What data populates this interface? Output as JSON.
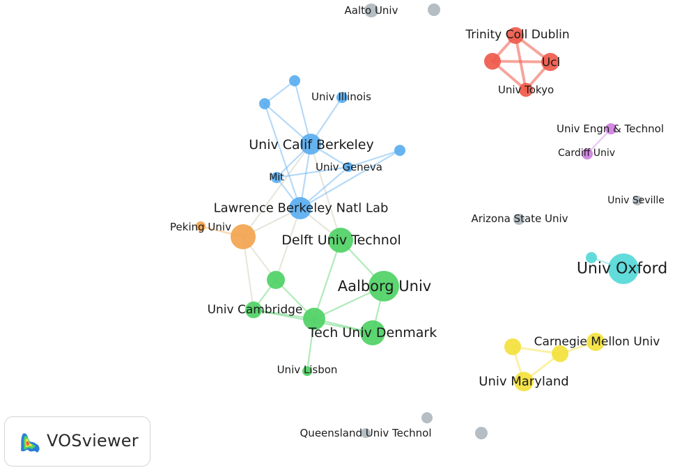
{
  "colors": {
    "blue": "#5aaef0",
    "green": "#4fd165",
    "orange": "#f3a44f",
    "red": "#ef5a4b",
    "purple": "#cf7ee0",
    "cyan": "#55d8d8",
    "yellow": "#f3e13c",
    "grey": "#aeb8bf"
  },
  "nodes": [
    {
      "id": "aalto",
      "label": "Aalto Univ",
      "cluster": "grey"
    },
    {
      "id": "grey_top",
      "label": "",
      "cluster": "grey"
    },
    {
      "id": "trinity",
      "label": "Trinity Coll Dublin",
      "cluster": "red"
    },
    {
      "id": "red_left",
      "label": "",
      "cluster": "red"
    },
    {
      "id": "ucl",
      "label": "Ucl",
      "cluster": "red"
    },
    {
      "id": "tokyo",
      "label": "Univ Tokyo",
      "cluster": "red"
    },
    {
      "id": "b_top",
      "label": "",
      "cluster": "blue"
    },
    {
      "id": "b_left",
      "label": "",
      "cluster": "blue"
    },
    {
      "id": "illinois",
      "label": "Univ Illinois",
      "cluster": "blue"
    },
    {
      "id": "berkeley",
      "label": "Univ Calif Berkeley",
      "cluster": "blue"
    },
    {
      "id": "b_right",
      "label": "",
      "cluster": "blue"
    },
    {
      "id": "geneva",
      "label": "Univ Geneva",
      "cluster": "blue"
    },
    {
      "id": "mit",
      "label": "Mit",
      "cluster": "blue"
    },
    {
      "id": "lbnl",
      "label": "Lawrence Berkeley Natl Lab",
      "cluster": "blue"
    },
    {
      "id": "peking",
      "label": "Peking Univ",
      "cluster": "orange"
    },
    {
      "id": "orange_big",
      "label": "",
      "cluster": "orange"
    },
    {
      "id": "delft",
      "label": "Delft Univ Technol",
      "cluster": "green"
    },
    {
      "id": "g_mid",
      "label": "",
      "cluster": "green"
    },
    {
      "id": "aalborg",
      "label": "Aalborg Univ",
      "cluster": "green"
    },
    {
      "id": "cambridge",
      "label": "Univ Cambridge",
      "cluster": "green"
    },
    {
      "id": "g_node",
      "label": "",
      "cluster": "green"
    },
    {
      "id": "dtu",
      "label": "Tech Univ Denmark",
      "cluster": "green"
    },
    {
      "id": "lisbon",
      "label": "Univ Lisbon",
      "cluster": "green"
    },
    {
      "id": "engn",
      "label": "Univ Engn & Technol",
      "cluster": "purple"
    },
    {
      "id": "cardiff",
      "label": "Cardiff Univ",
      "cluster": "purple"
    },
    {
      "id": "seville",
      "label": "Univ Seville",
      "cluster": "grey"
    },
    {
      "id": "arizona",
      "label": "Arizona State Univ",
      "cluster": "grey"
    },
    {
      "id": "cyan_small",
      "label": "",
      "cluster": "cyan"
    },
    {
      "id": "oxford",
      "label": "Univ Oxford",
      "cluster": "cyan"
    },
    {
      "id": "y_left",
      "label": "",
      "cluster": "yellow"
    },
    {
      "id": "carnegie",
      "label": "Carnegie Mellon Univ",
      "cluster": "yellow"
    },
    {
      "id": "y_mid",
      "label": "",
      "cluster": "yellow"
    },
    {
      "id": "maryland",
      "label": "Univ Maryland",
      "cluster": "yellow"
    },
    {
      "id": "grey_b1",
      "label": "",
      "cluster": "grey"
    },
    {
      "id": "queensland",
      "label": "Queensland Univ Technol",
      "cluster": "grey"
    },
    {
      "id": "grey_b2",
      "label": "",
      "cluster": "grey"
    }
  ],
  "links": [
    [
      "red_left",
      "trinity"
    ],
    [
      "red_left",
      "ucl"
    ],
    [
      "red_left",
      "tokyo"
    ],
    [
      "trinity",
      "ucl"
    ],
    [
      "trinity",
      "tokyo"
    ],
    [
      "ucl",
      "tokyo"
    ],
    [
      "b_top",
      "b_left"
    ],
    [
      "b_top",
      "berkeley"
    ],
    [
      "b_left",
      "berkeley"
    ],
    [
      "illinois",
      "berkeley"
    ],
    [
      "b_left",
      "lbnl"
    ],
    [
      "berkeley",
      "lbnl"
    ],
    [
      "berkeley",
      "mit"
    ],
    [
      "berkeley",
      "geneva"
    ],
    [
      "berkeley",
      "delft"
    ],
    [
      "b_right",
      "geneva"
    ],
    [
      "b_right",
      "lbnl"
    ],
    [
      "mit",
      "geneva"
    ],
    [
      "mit",
      "lbnl"
    ],
    [
      "geneva",
      "lbnl"
    ],
    [
      "lbnl",
      "delft"
    ],
    [
      "lbnl",
      "orange_big"
    ],
    [
      "lbnl",
      "g_mid"
    ],
    [
      "berkeley",
      "orange_big"
    ],
    [
      "peking",
      "orange_big"
    ],
    [
      "orange_big",
      "cambridge"
    ],
    [
      "orange_big",
      "g_mid"
    ],
    [
      "g_mid",
      "cambridge"
    ],
    [
      "g_mid",
      "g_node"
    ],
    [
      "cambridge",
      "g_node"
    ],
    [
      "cambridge",
      "dtu"
    ],
    [
      "g_node",
      "dtu"
    ],
    [
      "g_node",
      "lisbon"
    ],
    [
      "delft",
      "aalborg"
    ],
    [
      "delft",
      "g_node"
    ],
    [
      "aalborg",
      "dtu"
    ],
    [
      "aalborg",
      "g_node"
    ],
    [
      "engn",
      "cardiff"
    ],
    [
      "cyan_small",
      "oxford"
    ],
    [
      "y_left",
      "y_mid"
    ],
    [
      "y_left",
      "maryland"
    ],
    [
      "y_mid",
      "carnegie"
    ],
    [
      "y_mid",
      "maryland"
    ]
  ],
  "logo": {
    "text": "VOSviewer"
  }
}
